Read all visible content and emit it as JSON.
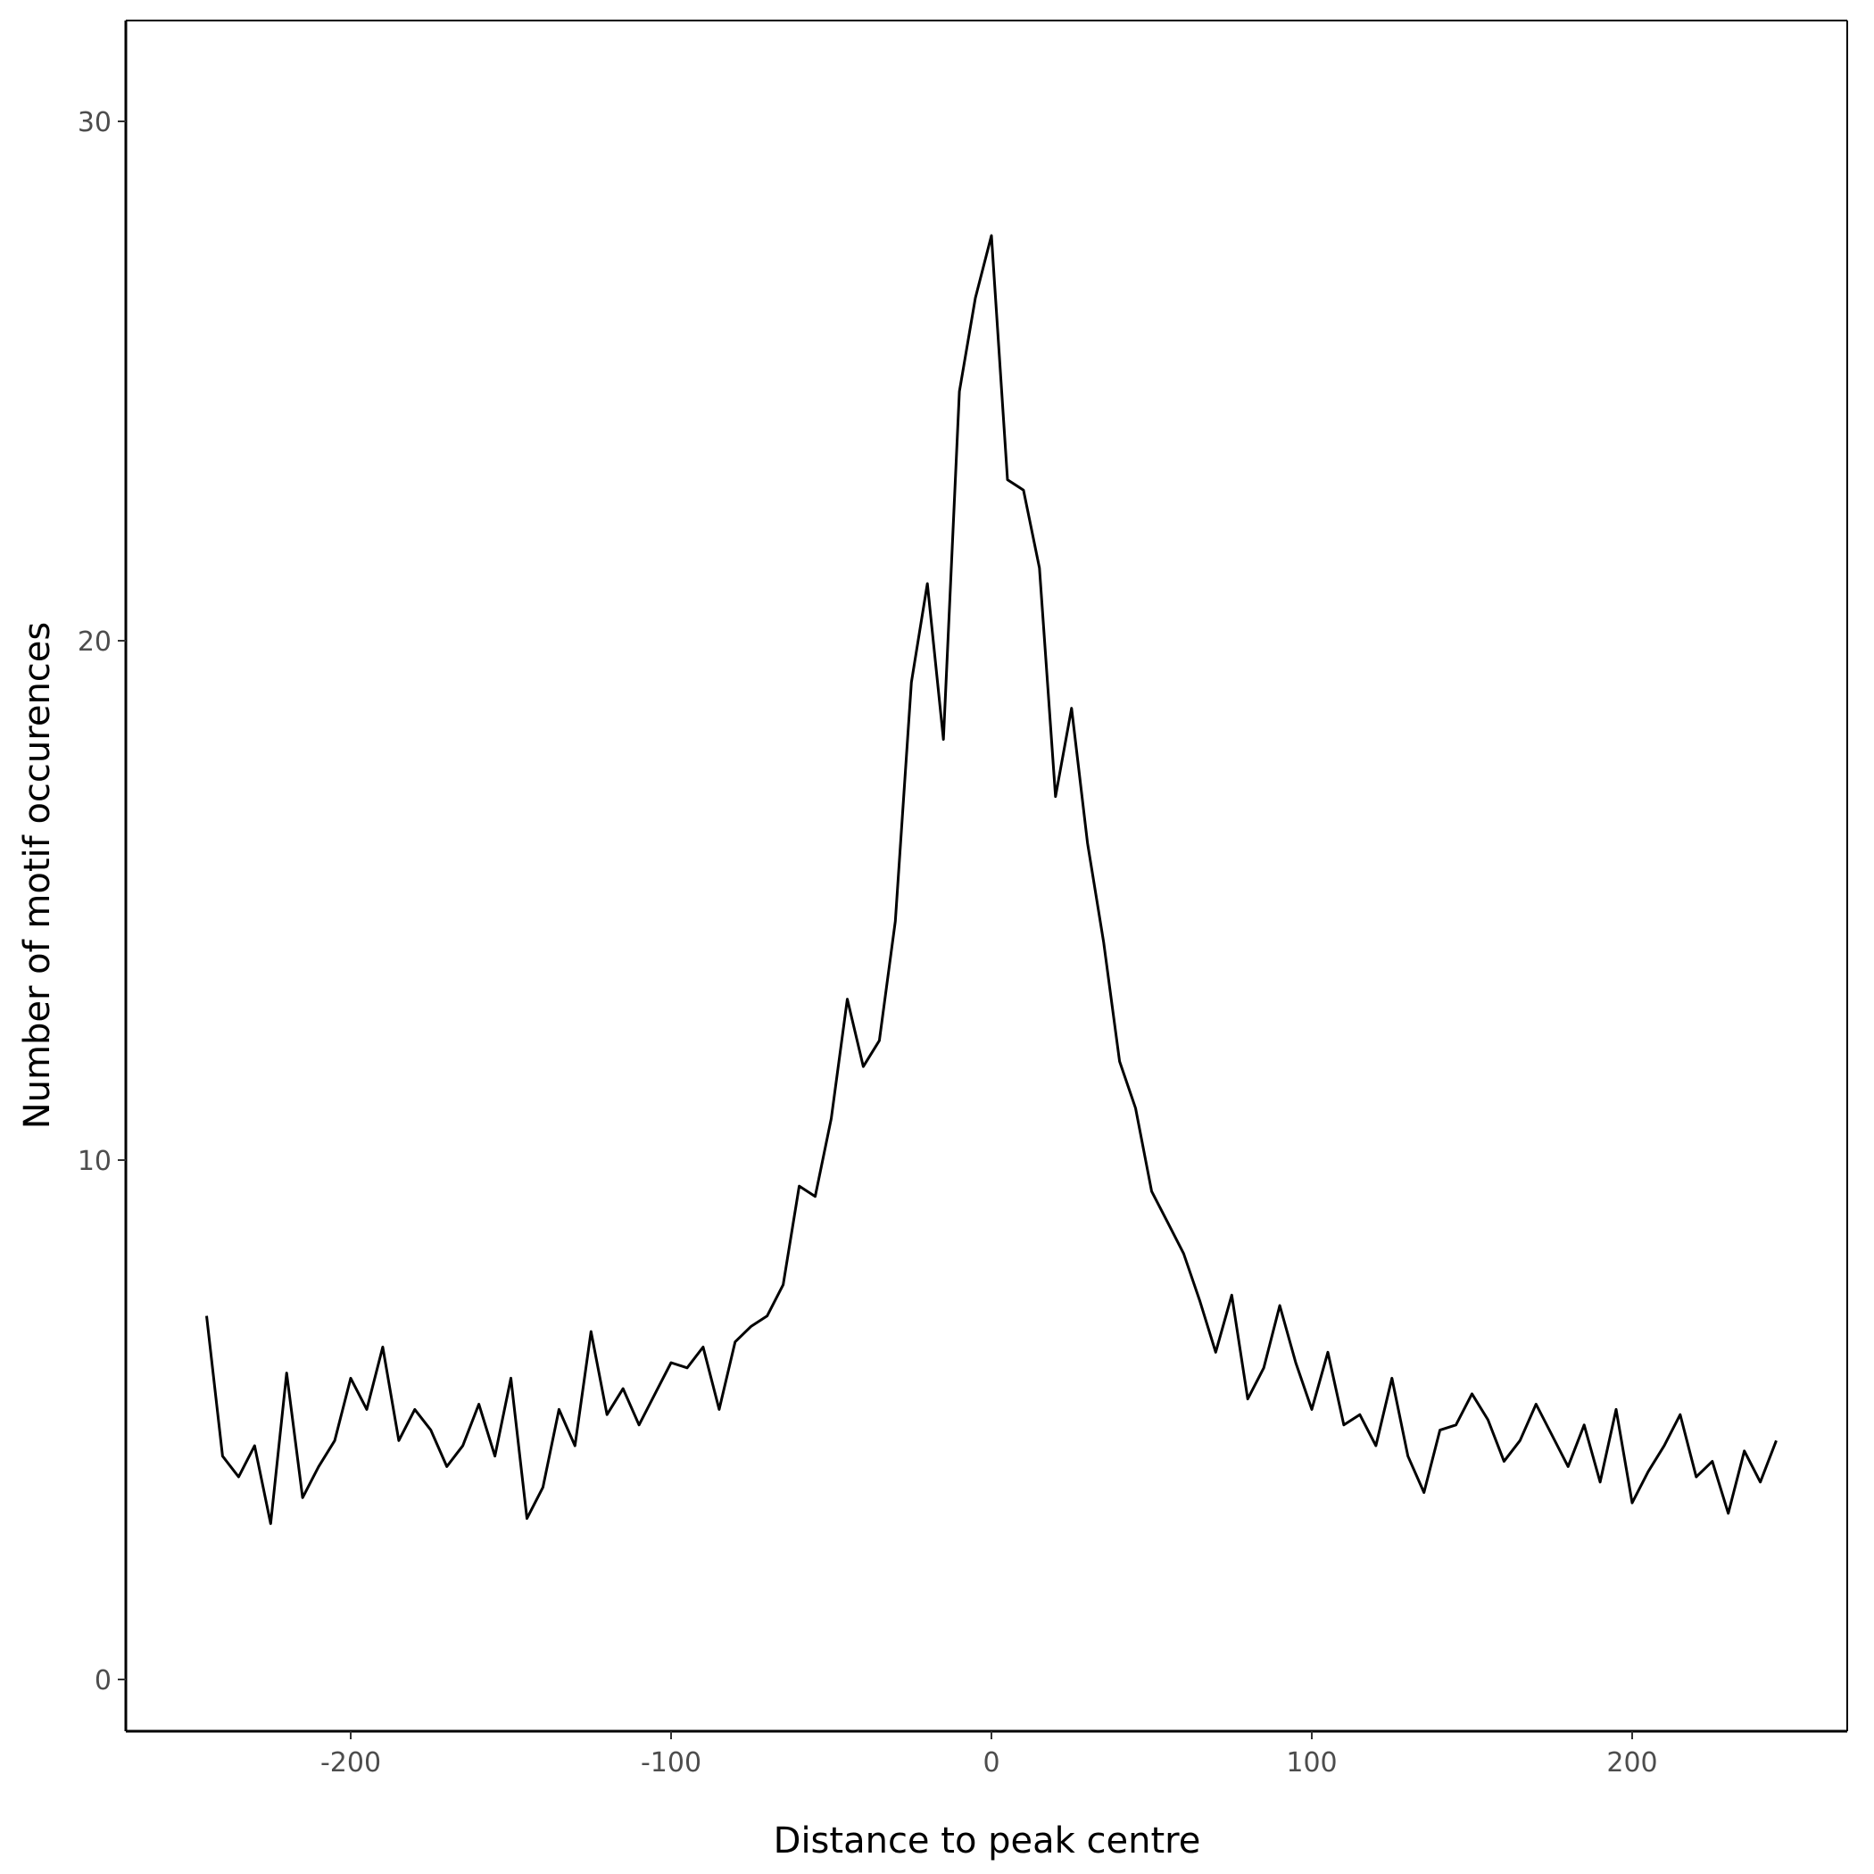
{
  "chart_data": {
    "type": "line",
    "title": "",
    "xlabel": "Distance to peak centre",
    "ylabel": "Number of motif occurences",
    "xlim": [
      -245,
      245
    ],
    "ylim": [
      0,
      30.5
    ],
    "x_ticks": [
      -200,
      -100,
      0,
      100,
      200
    ],
    "y_ticks": [
      0,
      10,
      20,
      30
    ],
    "x_tick_labels": [
      "-200",
      "-100",
      "0",
      "100",
      "200"
    ],
    "y_tick_labels": [
      "0",
      "10",
      "20",
      "30"
    ],
    "grid": false,
    "legend": "none",
    "line_color": "#000000",
    "series": [
      {
        "x": [
          -245,
          -240,
          -235,
          -230,
          -225,
          -220,
          -215,
          -210,
          -205,
          -200,
          -195,
          -190,
          -185,
          -180,
          -175,
          -170,
          -165,
          -160,
          -155,
          -150,
          -145,
          -140,
          -135,
          -130,
          -125,
          -120,
          -115,
          -110,
          -105,
          -100,
          -95,
          -90,
          -85,
          -80,
          -75,
          -70,
          -65,
          -60,
          -55,
          -50,
          -45,
          -40,
          -35,
          -30,
          -25,
          -20,
          -15,
          -10,
          -5,
          0,
          5,
          10,
          15,
          20,
          25,
          30,
          35,
          40,
          45,
          50,
          55,
          60,
          65,
          70,
          75,
          80,
          85,
          90,
          95,
          100,
          105,
          110,
          115,
          120,
          125,
          130,
          135,
          140,
          145,
          150,
          155,
          160,
          165,
          170,
          175,
          180,
          185,
          190,
          195,
          200,
          205,
          210,
          215,
          220,
          225,
          230,
          235,
          240,
          245
        ],
        "y": [
          7.0,
          4.3,
          3.9,
          4.5,
          3.0,
          5.9,
          3.5,
          4.1,
          4.6,
          5.8,
          5.2,
          6.4,
          4.6,
          5.2,
          4.8,
          4.1,
          4.5,
          5.3,
          4.3,
          5.8,
          3.1,
          3.7,
          5.2,
          4.5,
          6.7,
          5.1,
          5.6,
          4.9,
          5.5,
          6.1,
          6.0,
          6.4,
          5.2,
          6.5,
          6.8,
          7.0,
          7.6,
          9.5,
          9.3,
          10.8,
          13.1,
          11.8,
          12.3,
          14.6,
          19.2,
          21.1,
          18.1,
          24.8,
          26.6,
          27.8,
          23.1,
          22.9,
          21.4,
          17.0,
          18.7,
          16.1,
          14.2,
          11.9,
          11.0,
          9.4,
          8.8,
          8.2,
          7.3,
          6.3,
          7.4,
          5.4,
          6.0,
          7.2,
          6.1,
          5.2,
          6.3,
          4.9,
          5.1,
          4.5,
          5.8,
          4.3,
          3.6,
          4.8,
          4.9,
          5.5,
          5.0,
          4.2,
          4.6,
          5.3,
          4.7,
          4.1,
          4.9,
          3.8,
          5.2,
          3.4,
          4.0,
          4.5,
          5.1,
          3.9,
          4.2,
          3.2,
          4.4,
          3.8,
          4.6
        ]
      }
    ]
  }
}
